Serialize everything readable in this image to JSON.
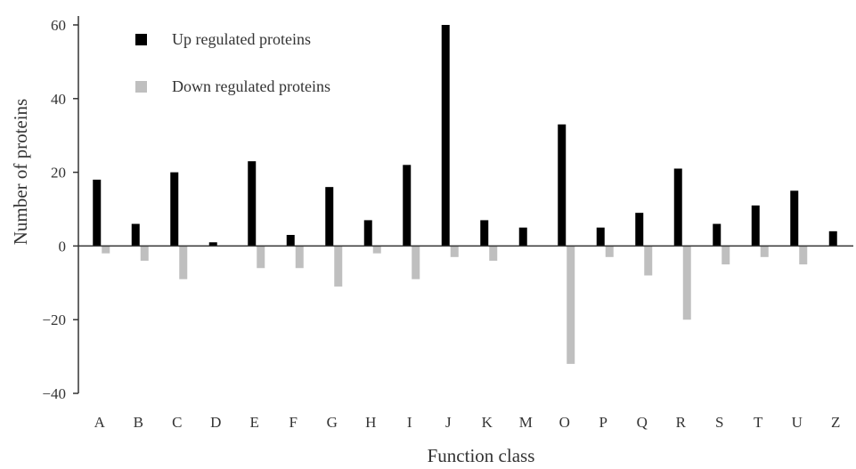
{
  "chart_data": {
    "type": "bar",
    "xlabel": "Function class",
    "ylabel": "Number of proteins",
    "ylim": [
      -40,
      60
    ],
    "yticks": [
      "-40",
      "-20",
      "0",
      "20",
      "40",
      "60"
    ],
    "grid": false,
    "legend_position": "top-left",
    "categories": [
      "A",
      "B",
      "C",
      "D",
      "E",
      "F",
      "G",
      "H",
      "I",
      "J",
      "K",
      "M",
      "O",
      "P",
      "Q",
      "R",
      "S",
      "T",
      "U",
      "Z"
    ],
    "series": [
      {
        "name": "Up regulated proteins",
        "color": "#000000",
        "values": [
          18,
          6,
          20,
          1,
          23,
          3,
          16,
          7,
          22,
          60,
          7,
          5,
          33,
          5,
          9,
          21,
          6,
          11,
          15,
          4
        ]
      },
      {
        "name": "Down regulated proteins",
        "color": "#bfbfbf",
        "values": [
          -2,
          -4,
          -9,
          0,
          -6,
          -6,
          -11,
          -2,
          -9,
          -3,
          -4,
          0,
          -32,
          -3,
          -8,
          -20,
          -5,
          -3,
          -5,
          0
        ]
      }
    ]
  }
}
